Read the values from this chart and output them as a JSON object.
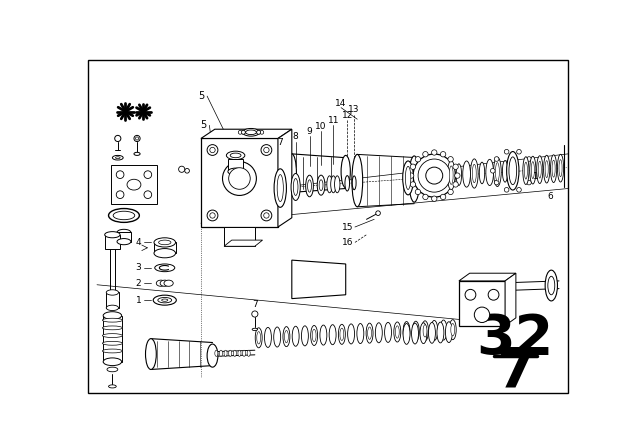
{
  "bg_color": "#ffffff",
  "line_color": "#000000",
  "fig_width": 6.4,
  "fig_height": 4.48,
  "dpi": 100,
  "page_num_top": "32",
  "page_num_bot": "7",
  "border": [
    8,
    8,
    624,
    432
  ]
}
